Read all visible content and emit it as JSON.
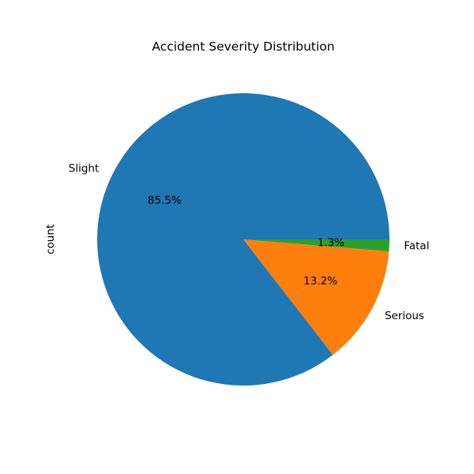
{
  "chart_data": {
    "type": "pie",
    "title": "Accident Severity Distribution",
    "ylabel": "count",
    "xlabel": "",
    "start_angle_deg": 0,
    "direction": "counterclockwise",
    "slices": [
      {
        "label": "Slight",
        "percent": 85.5,
        "display": "85.5%",
        "color": "#1f77b4"
      },
      {
        "label": "Serious",
        "percent": 13.2,
        "display": "13.2%",
        "color": "#ff7f0e"
      },
      {
        "label": "Fatal",
        "percent": 1.3,
        "display": "1.3%",
        "color": "#2ca02c"
      }
    ]
  }
}
